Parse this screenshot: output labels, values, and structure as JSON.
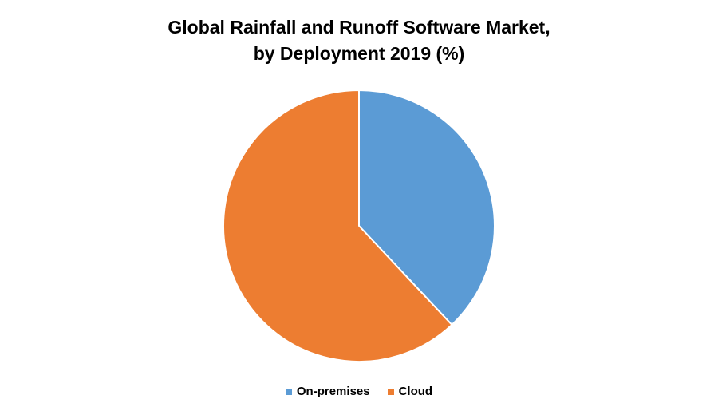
{
  "chart_data": {
    "type": "pie",
    "title_line1": "Global Rainfall and Runoff Software Market,",
    "title_line2": "by Deployment 2019 (%)",
    "categories": [
      "On-premises",
      "Cloud"
    ],
    "values": [
      38,
      62
    ],
    "colors": [
      "#5B9BD5",
      "#ED7D31"
    ],
    "legend_position": "bottom"
  }
}
